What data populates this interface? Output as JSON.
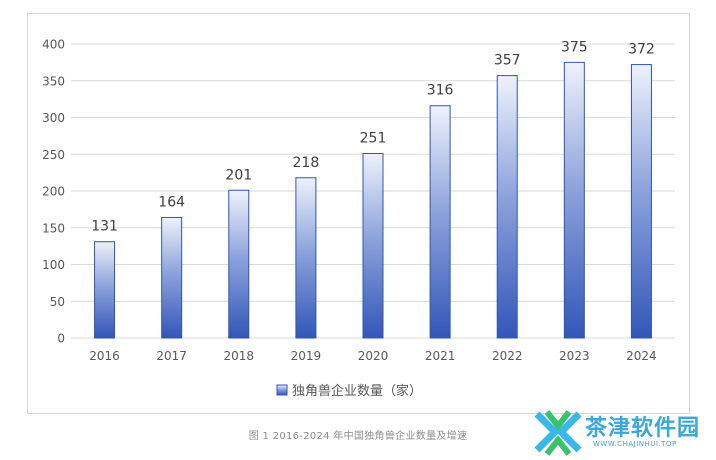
{
  "chart_data": {
    "type": "bar",
    "categories": [
      "2016",
      "2017",
      "2018",
      "2019",
      "2020",
      "2021",
      "2022",
      "2023",
      "2024"
    ],
    "values": [
      131,
      164,
      201,
      218,
      251,
      316,
      357,
      375,
      372
    ],
    "series": [
      {
        "name": "独角兽企业数量（家）",
        "values": [
          131,
          164,
          201,
          218,
          251,
          316,
          357,
          375,
          372
        ]
      }
    ],
    "y_ticks": [
      "0",
      "50",
      "100",
      "150",
      "200",
      "250",
      "300",
      "350",
      "400"
    ],
    "ylim": [
      0,
      400
    ],
    "grid": true,
    "legend_position": "bottom",
    "data_labels": true,
    "colors": {
      "bar_top": "#eef2fb",
      "bar_bottom": "#3356b8",
      "bar_border": "#2f55b5",
      "grid": "#d9d9d9"
    }
  },
  "caption": "图 1 2016-2024 年中国独角兽企业数量及增速",
  "watermark": {
    "name": "茶津软件园",
    "url": "WWW.CHAJINHUI.TOP"
  }
}
